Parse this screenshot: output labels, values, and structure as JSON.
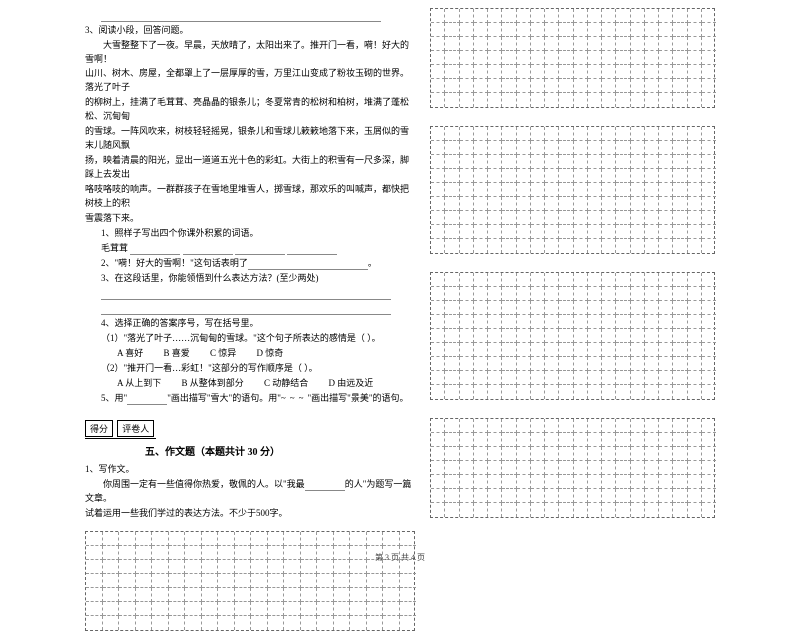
{
  "reading": {
    "q3_label": "3、阅读小段，回答问题。",
    "passage": [
      "大雪整整下了一夜。早晨，天放晴了，太阳出来了。推开门一看，嗬！好大的雪啊！",
      "山川、树木、房屋，全都罩上了一层厚厚的雪，万里江山变成了粉妆玉砌的世界。落光了叶子",
      "的柳树上，挂满了毛茸茸、亮晶晶的银条儿；冬夏常青的松树和柏树，堆满了蓬松松、沉甸甸",
      "的雪球。一阵风吹来，树枝轻轻摇晃，银条儿和雪球儿簌簌地落下来，玉屑似的雪末儿随风飘",
      "扬，映着清晨的阳光，显出一道道五光十色的彩虹。大街上的积雪有一尺多深，脚踩上去发出",
      "咯吱咯吱的响声。一群群孩子在雪地里堆雪人，掷雪球，那欢乐的叫喊声，都快把树枝上的积",
      "雪震落下来。"
    ],
    "sub1": "1、照样子写出四个你课外积累的词语。",
    "sub1_ex": "毛茸茸",
    "sub2": "2、\"嗬！好大的雪啊！\"这句话表明了",
    "sub2_tail": "。",
    "sub3": "3、在这段话里，你能领悟到什么表达方法？(至少两处)",
    "sub4": "4、选择正确的答案序号，写在括号里。",
    "sub4_1": "（1）\"落光了叶子……沉甸甸的雪球。\"这个句子所表达的感情是（        ）。",
    "sub4_1_opts": {
      "a": "A 喜好",
      "b": "B 喜爱",
      "c": "C 惊异",
      "d": "D 惊奇"
    },
    "sub4_2": "（2）\"推开门一看…彩虹！\"这部分的写作顺序是（        ）。",
    "sub4_2_opts": {
      "a": "A 从上到下",
      "b": "B 从整体到部分",
      "c": "C 动静结合",
      "d": "D 由远及近"
    },
    "sub5_a": "5、用\"",
    "sub5_b": "\"画出描写\"雪大\"的语句。用\"",
    "sub5_c": "\"画出描写\"景美\"的语句。"
  },
  "composition": {
    "score_label": "得分",
    "judge_label": "评卷人",
    "title": "五、作文题（本题共计 30 分）",
    "q1": "1、写作文。",
    "prompt_a": "你周围一定有一些值得你热爱，敬佩的人。以\"我最",
    "prompt_b": "的人\"为题写一篇文章。",
    "prompt2": "试着运用一些我们学过的表达方法。不少于500字。"
  },
  "footer": "第 3 页 共 4 页",
  "grid": {
    "cols": 20,
    "left_rows": 7,
    "right_block_rows": [
      7,
      9,
      9,
      7
    ]
  },
  "style": {
    "cell_size": 14,
    "right_cell_size": 14
  }
}
